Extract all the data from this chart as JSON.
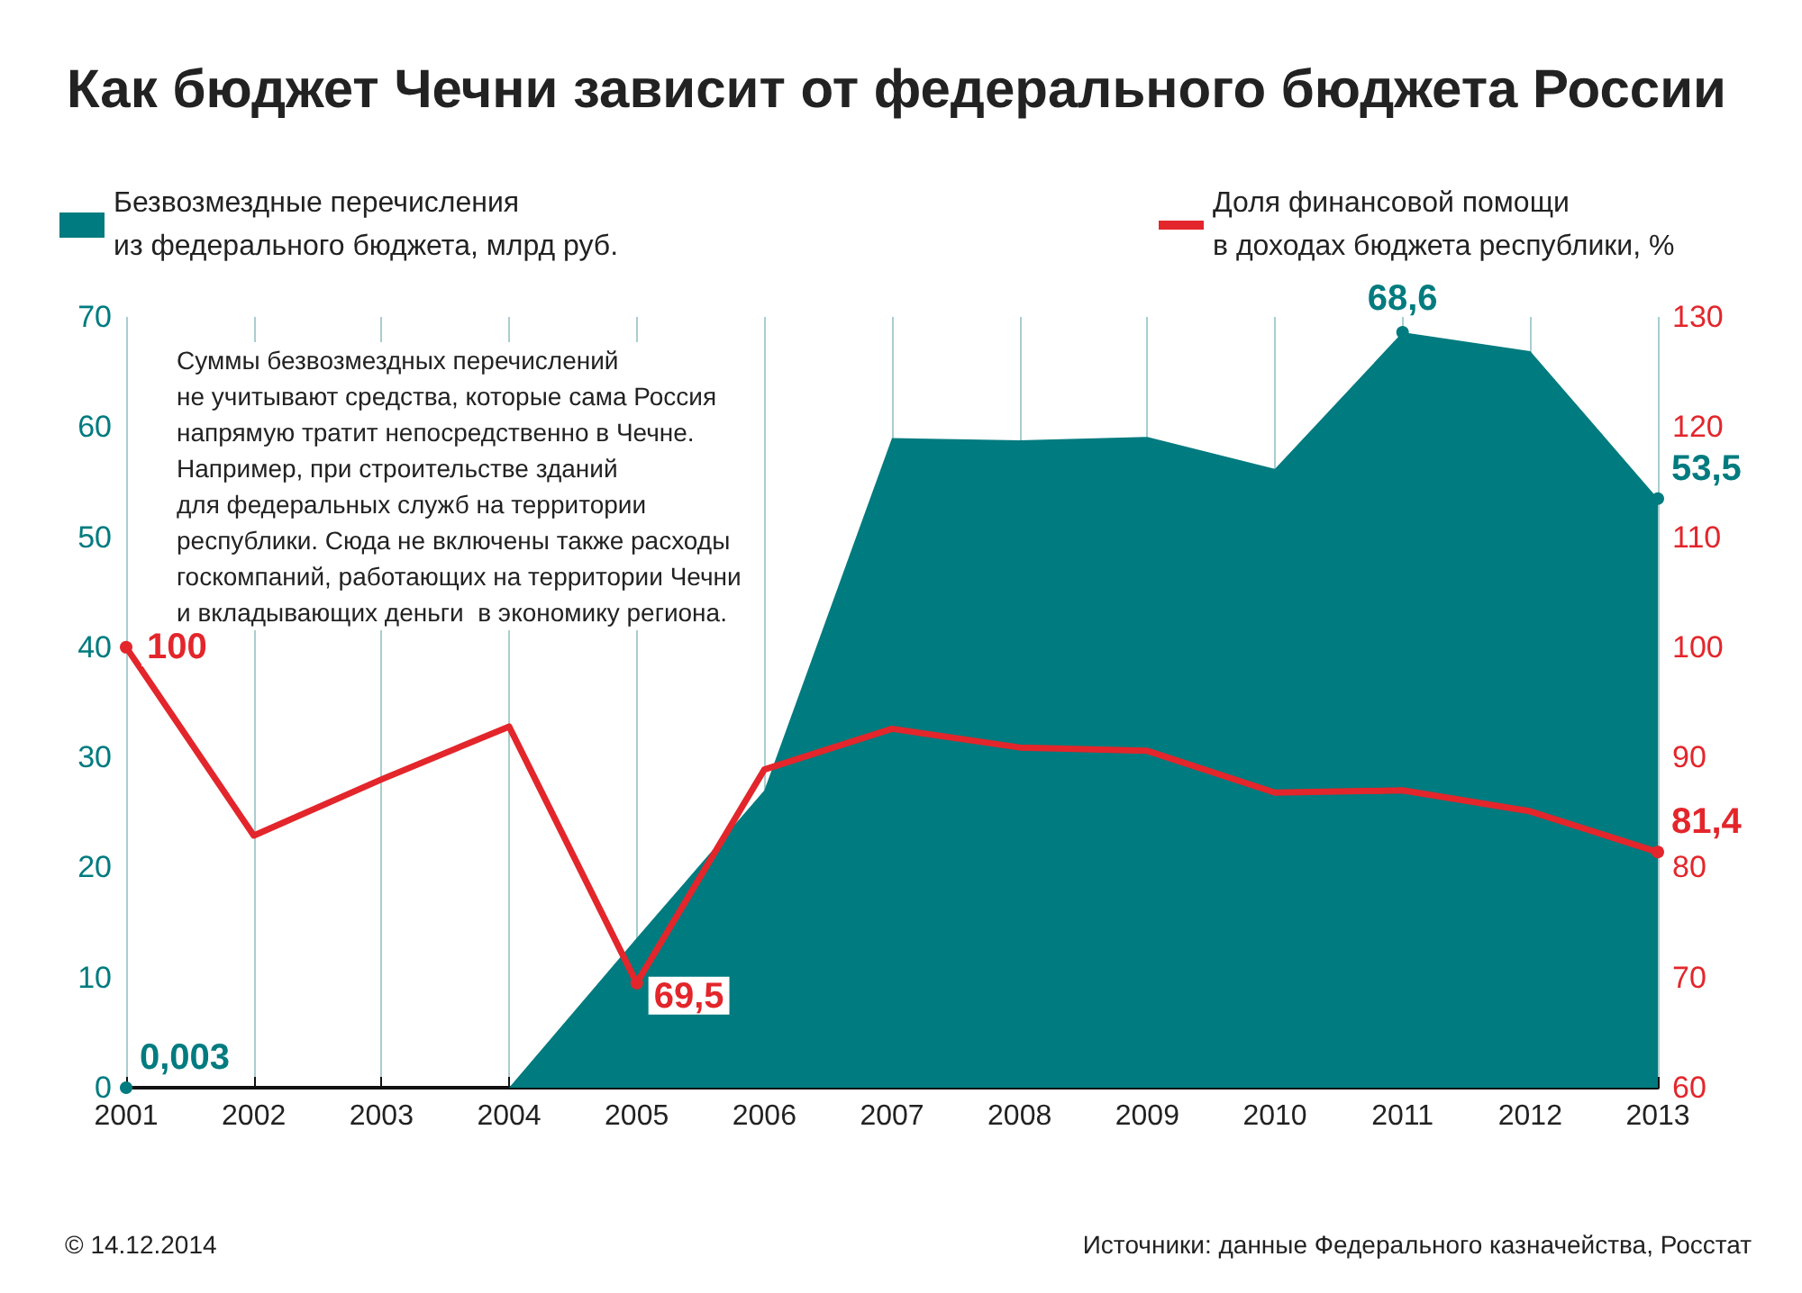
{
  "chart_data": {
    "type": "area",
    "title": "Как бюджет Чечни зависит от федерального бюджета России",
    "categories": [
      "2001",
      "2002",
      "2003",
      "2004",
      "2005",
      "2006",
      "2007",
      "2008",
      "2009",
      "2010",
      "2011",
      "2012",
      "2013"
    ],
    "series": [
      {
        "name": "Безвозмездные перечисления\nиз федерального бюджета, млрд руб.",
        "color": "#007b7f",
        "values": [
          0.003,
          0,
          0,
          0,
          13.6,
          27,
          59,
          58.8,
          59.1,
          56.2,
          68.6,
          66.9,
          53.5
        ],
        "value_labels": [
          "0,003",
          null,
          null,
          null,
          null,
          null,
          null,
          null,
          null,
          null,
          "68,6",
          null,
          "53,5"
        ]
      },
      {
        "name": "Доля финансовой помощи\nв доходах бюджета республики, %",
        "type": "line",
        "axis": "y2",
        "color": "#e3262b",
        "values": [
          100,
          82.9,
          88,
          92.8,
          69.5,
          88.9,
          92.6,
          90.9,
          90.6,
          86.8,
          87,
          85.1,
          81.4
        ],
        "value_labels": [
          "100",
          null,
          null,
          null,
          "69,5",
          null,
          null,
          null,
          null,
          null,
          null,
          null,
          "81,4"
        ]
      }
    ],
    "ylim": [
      0,
      70
    ],
    "yticks": [
      0,
      10,
      20,
      30,
      40,
      50,
      60,
      70
    ],
    "y2lim": [
      60,
      130
    ],
    "y2ticks": [
      60,
      70,
      80,
      90,
      100,
      110,
      120,
      130
    ],
    "grid": "x",
    "legend": "top",
    "annotations": [
      "Суммы безвозмездных перечислений\nне учитывают средства, которые сама Россия\nнапрямую тратит непосредственно в Чечне.\nНапример, при строительстве зданий\nдля федеральных служб на территории\nреспублики. Сюда не включены также расходы\nгоскомпаний, работающих на территории Чечни\nи вкладывающих деньги  в экономику региона.",
      "© 14.12.2014",
      "Источники: данные Федерального казначейства, Росстат"
    ]
  }
}
